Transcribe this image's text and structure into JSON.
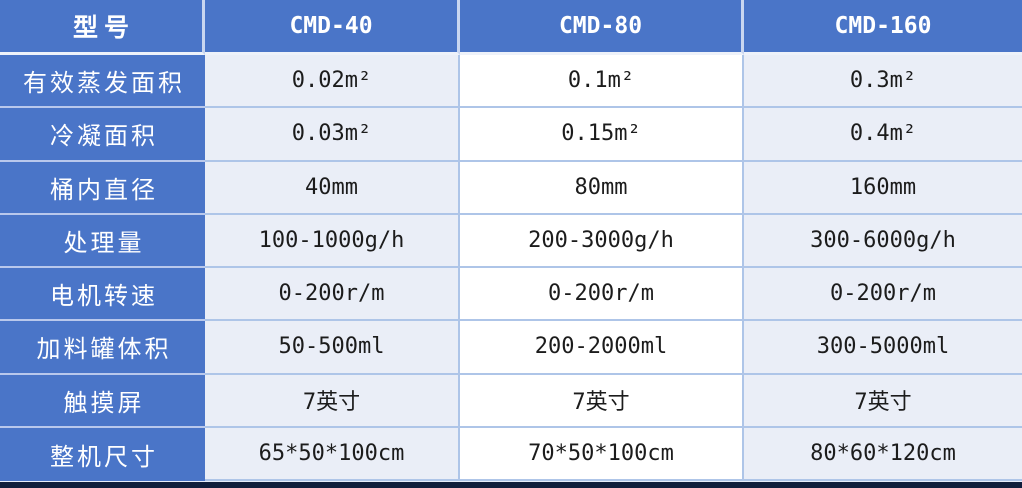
{
  "table": {
    "header": {
      "label": "型号",
      "models": [
        "CMD-40",
        "CMD-80",
        "CMD-160"
      ]
    },
    "rows": [
      {
        "label": "有效蒸发面积",
        "values": [
          "0.02m²",
          "0.1m²",
          "0.3m²"
        ]
      },
      {
        "label": "冷凝面积",
        "values": [
          "0.03m²",
          "0.15m²",
          "0.4m²"
        ]
      },
      {
        "label": "桶内直径",
        "values": [
          "40mm",
          "80mm",
          "160mm"
        ]
      },
      {
        "label": "处理量",
        "values": [
          "100-1000g/h",
          "200-3000g/h",
          "300-6000g/h"
        ]
      },
      {
        "label": "电机转速",
        "values": [
          "0-200r/m",
          "0-200r/m",
          "0-200r/m"
        ]
      },
      {
        "label": "加料罐体积",
        "values": [
          "50-500ml",
          "200-2000ml",
          "300-5000ml"
        ]
      },
      {
        "label": "触摸屏",
        "values": [
          "7英寸",
          "7英寸",
          "7英寸"
        ]
      },
      {
        "label": "整机尺寸",
        "values": [
          "65*50*100cm",
          "70*50*100cm",
          "80*60*120cm"
        ]
      }
    ]
  },
  "colors": {
    "header_bg": "#4A75C8",
    "label_column_bg": "#4A75C8",
    "tint_cell_bg": "#EAEEF7",
    "white_cell_bg": "#FFFFFF",
    "grid_border": "#AEC5E8",
    "bottom_bar": "#101E3C",
    "header_text": "#FFFFFF",
    "value_text": "#1C1C1C"
  }
}
